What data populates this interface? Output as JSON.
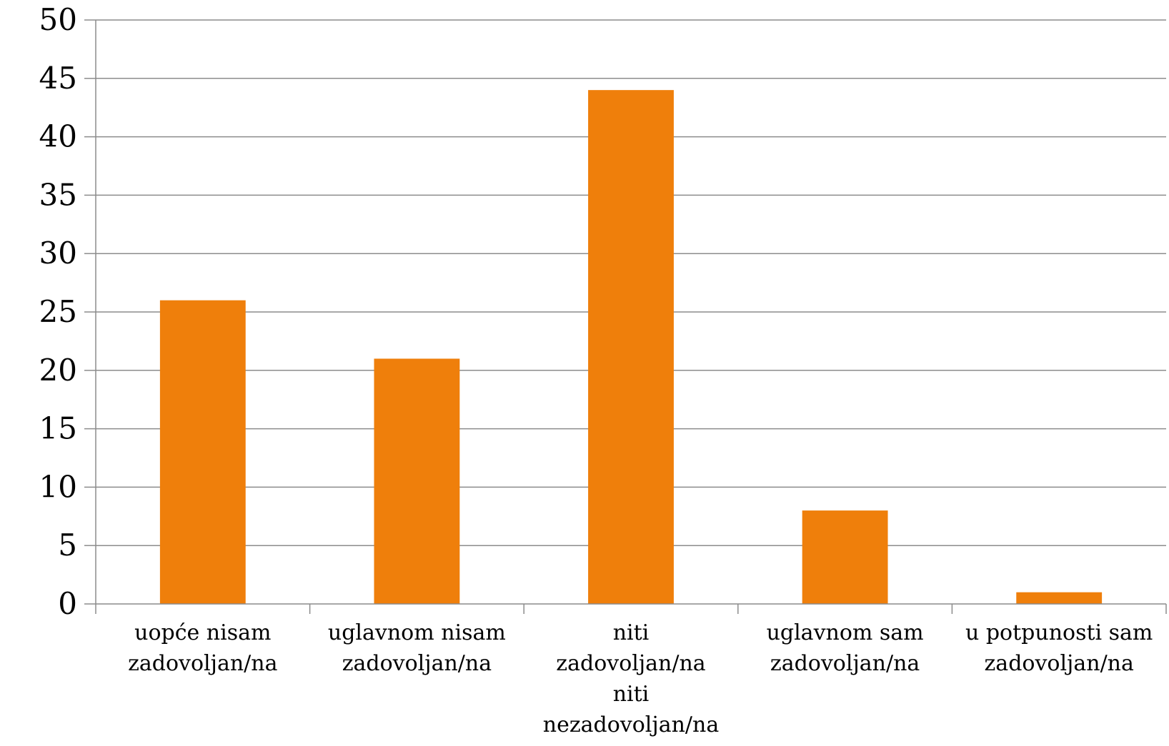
{
  "colors": {
    "bar": "#ef7f0b",
    "grid": "#8c8c8c",
    "axis": "#8c8c8c",
    "text": "#000000",
    "background": "#ffffff"
  },
  "chart_data": {
    "type": "bar",
    "title": "",
    "xlabel": "",
    "ylabel": "",
    "categories": [
      [
        "uopće nisam",
        "zadovoljan/na"
      ],
      [
        "uglavnom nisam",
        "zadovoljan/na"
      ],
      [
        "niti",
        "zadovoljan/na",
        "niti",
        "nezadovoljan/na"
      ],
      [
        "uglavnom sam",
        "zadovoljan/na"
      ],
      [
        "u potpunosti sam",
        "zadovoljan/na"
      ]
    ],
    "series": [
      {
        "values": [
          26,
          21,
          44,
          8,
          1
        ]
      }
    ],
    "ylim": [
      0,
      50
    ],
    "yticks": [
      "0",
      "5",
      "10",
      "15",
      "20",
      "25",
      "30",
      "35",
      "40",
      "45",
      "50"
    ],
    "grid": true,
    "legend": "none"
  }
}
